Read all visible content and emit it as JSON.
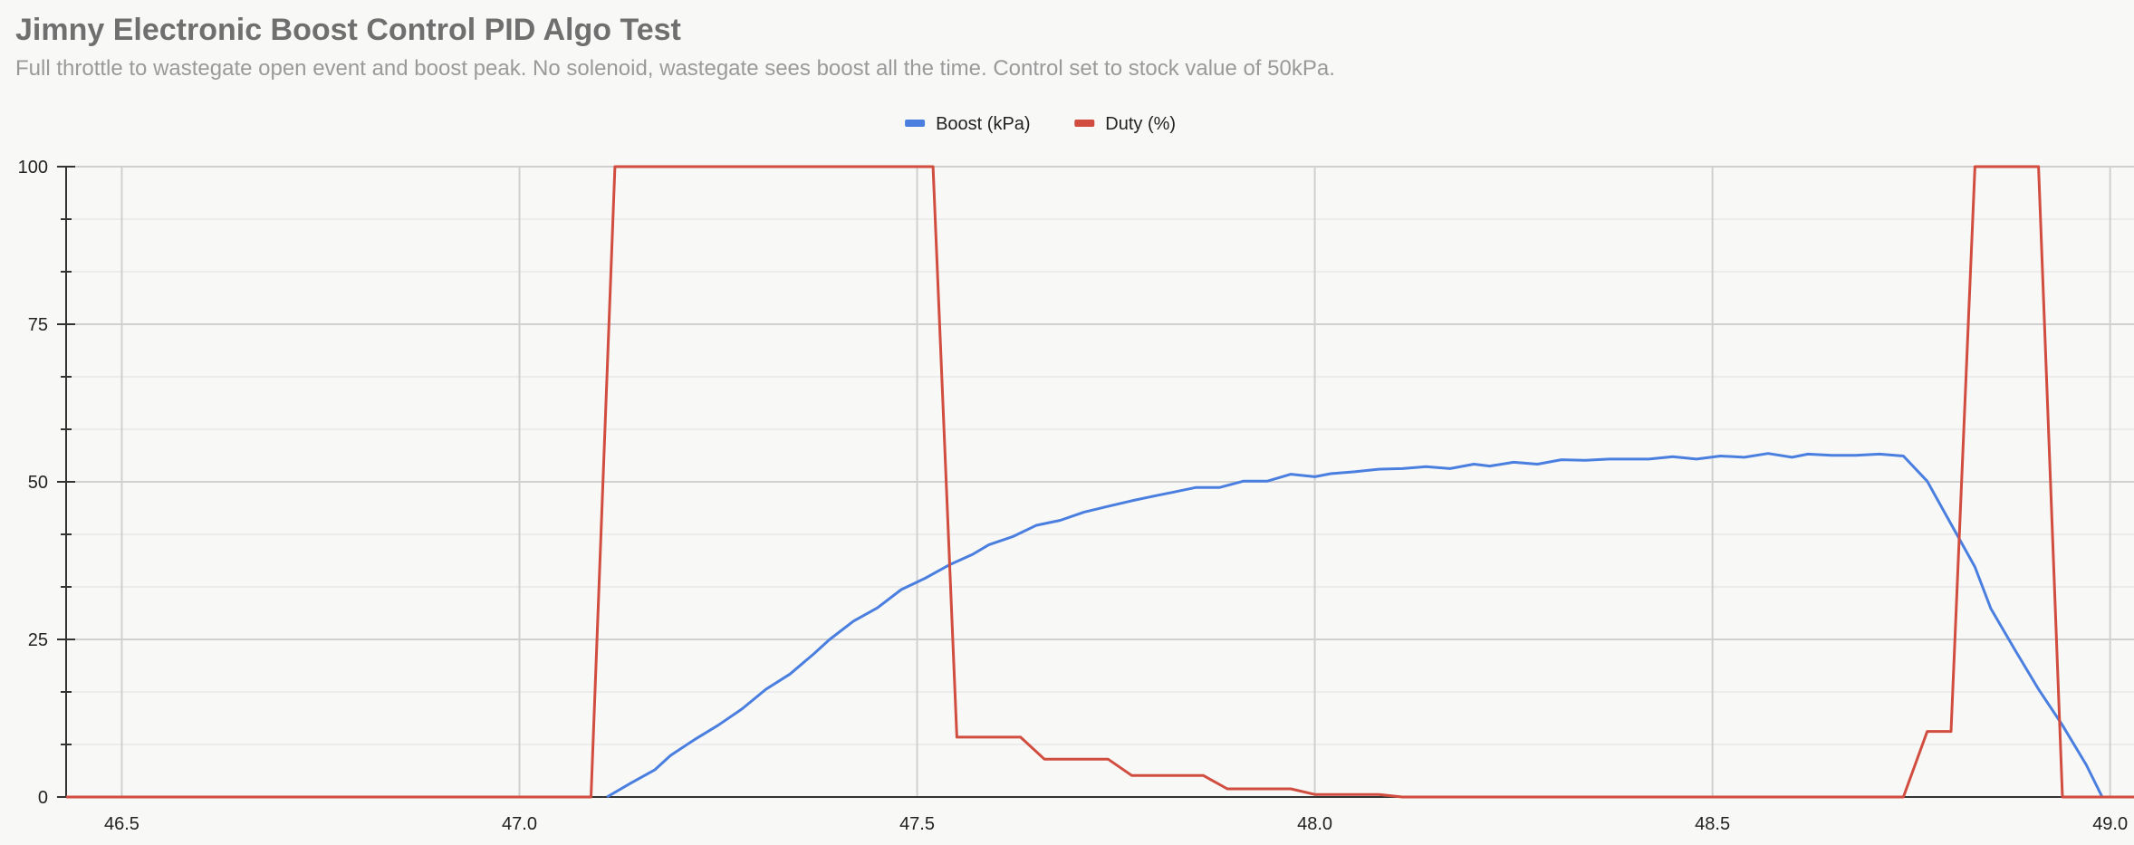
{
  "chart_data": {
    "type": "line",
    "title": "Jimny Electronic Boost Control PID Algo Test",
    "subtitle": "Full throttle to wastegate open event and boost peak. No solenoid, wastegate sees boost all the time. Control set to stock value of 50kPa.",
    "xlabel": "",
    "ylabel": "",
    "xlim": [
      46.43,
      49.03
    ],
    "ylim": [
      0,
      100
    ],
    "grid": true,
    "legend": "top-center",
    "x_ticks": [
      {
        "value": 46.5,
        "label": "46.5"
      },
      {
        "value": 47.0,
        "label": "47.0"
      },
      {
        "value": 47.5,
        "label": "47.5"
      },
      {
        "value": 48.0,
        "label": "48.0"
      },
      {
        "value": 48.5,
        "label": "48.5"
      },
      {
        "value": 49.0,
        "label": "49.0"
      }
    ],
    "y_ticks": [
      {
        "value": 0,
        "label": "0"
      },
      {
        "value": 25,
        "label": "25"
      },
      {
        "value": 50,
        "label": "50"
      },
      {
        "value": 75,
        "label": "75"
      },
      {
        "value": 100,
        "label": "100"
      }
    ],
    "series": [
      {
        "name": "Boost (kPa)",
        "color": "#4a7fe0",
        "points": [
          [
            47.11,
            0
          ],
          [
            47.14,
            2.2
          ],
          [
            47.17,
            4.3
          ],
          [
            47.19,
            6.6
          ],
          [
            47.22,
            9.1
          ],
          [
            47.25,
            11.4
          ],
          [
            47.28,
            14
          ],
          [
            47.31,
            17.1
          ],
          [
            47.34,
            19.5
          ],
          [
            47.37,
            22.7
          ],
          [
            47.39,
            25
          ],
          [
            47.42,
            27.9
          ],
          [
            47.45,
            30
          ],
          [
            47.48,
            32.9
          ],
          [
            47.51,
            34.7
          ],
          [
            47.54,
            36.8
          ],
          [
            47.57,
            38.5
          ],
          [
            47.59,
            40
          ],
          [
            47.62,
            41.3
          ],
          [
            47.65,
            43.1
          ],
          [
            47.68,
            43.9
          ],
          [
            47.71,
            45.2
          ],
          [
            47.74,
            46.1
          ],
          [
            47.77,
            47
          ],
          [
            47.8,
            47.8
          ],
          [
            47.82,
            48.3
          ],
          [
            47.85,
            49.1
          ],
          [
            47.88,
            49.1
          ],
          [
            47.91,
            50.1
          ],
          [
            47.94,
            50.1
          ],
          [
            47.97,
            51.2
          ],
          [
            48.0,
            50.8
          ],
          [
            48.02,
            51.3
          ],
          [
            48.05,
            51.6
          ],
          [
            48.08,
            52
          ],
          [
            48.11,
            52.1
          ],
          [
            48.14,
            52.4
          ],
          [
            48.17,
            52.1
          ],
          [
            48.2,
            52.8
          ],
          [
            48.22,
            52.5
          ],
          [
            48.25,
            53.1
          ],
          [
            48.28,
            52.8
          ],
          [
            48.31,
            53.5
          ],
          [
            48.34,
            53.4
          ],
          [
            48.37,
            53.6
          ],
          [
            48.4,
            53.6
          ],
          [
            48.42,
            53.6
          ],
          [
            48.45,
            54
          ],
          [
            48.48,
            53.6
          ],
          [
            48.51,
            54.1
          ],
          [
            48.54,
            53.9
          ],
          [
            48.57,
            54.5
          ],
          [
            48.6,
            53.9
          ],
          [
            48.62,
            54.4
          ],
          [
            48.65,
            54.2
          ],
          [
            48.68,
            54.2
          ],
          [
            48.71,
            54.4
          ],
          [
            48.74,
            54.1
          ],
          [
            48.77,
            50.1
          ],
          [
            48.8,
            43.3
          ],
          [
            48.83,
            36.5
          ],
          [
            48.85,
            29.9
          ],
          [
            48.88,
            23.4
          ],
          [
            48.91,
            17.1
          ],
          [
            48.94,
            11.4
          ],
          [
            48.97,
            5.1
          ],
          [
            48.99,
            0
          ],
          [
            49.03,
            0
          ]
        ]
      },
      {
        "name": "Duty (%)",
        "color": "#d14d3f",
        "points": [
          [
            46.43,
            0
          ],
          [
            47.09,
            0
          ],
          [
            47.12,
            100
          ],
          [
            47.52,
            100
          ],
          [
            47.55,
            9.5
          ],
          [
            47.63,
            9.5
          ],
          [
            47.66,
            6
          ],
          [
            47.74,
            6
          ],
          [
            47.77,
            3.4
          ],
          [
            47.86,
            3.4
          ],
          [
            47.89,
            1.3
          ],
          [
            47.97,
            1.3
          ],
          [
            48.0,
            0.4
          ],
          [
            48.08,
            0.4
          ],
          [
            48.11,
            0
          ],
          [
            48.74,
            0
          ],
          [
            48.77,
            10.4
          ],
          [
            48.8,
            10.4
          ],
          [
            48.83,
            100
          ],
          [
            48.91,
            100
          ],
          [
            48.94,
            0
          ],
          [
            49.03,
            0
          ]
        ]
      }
    ]
  }
}
